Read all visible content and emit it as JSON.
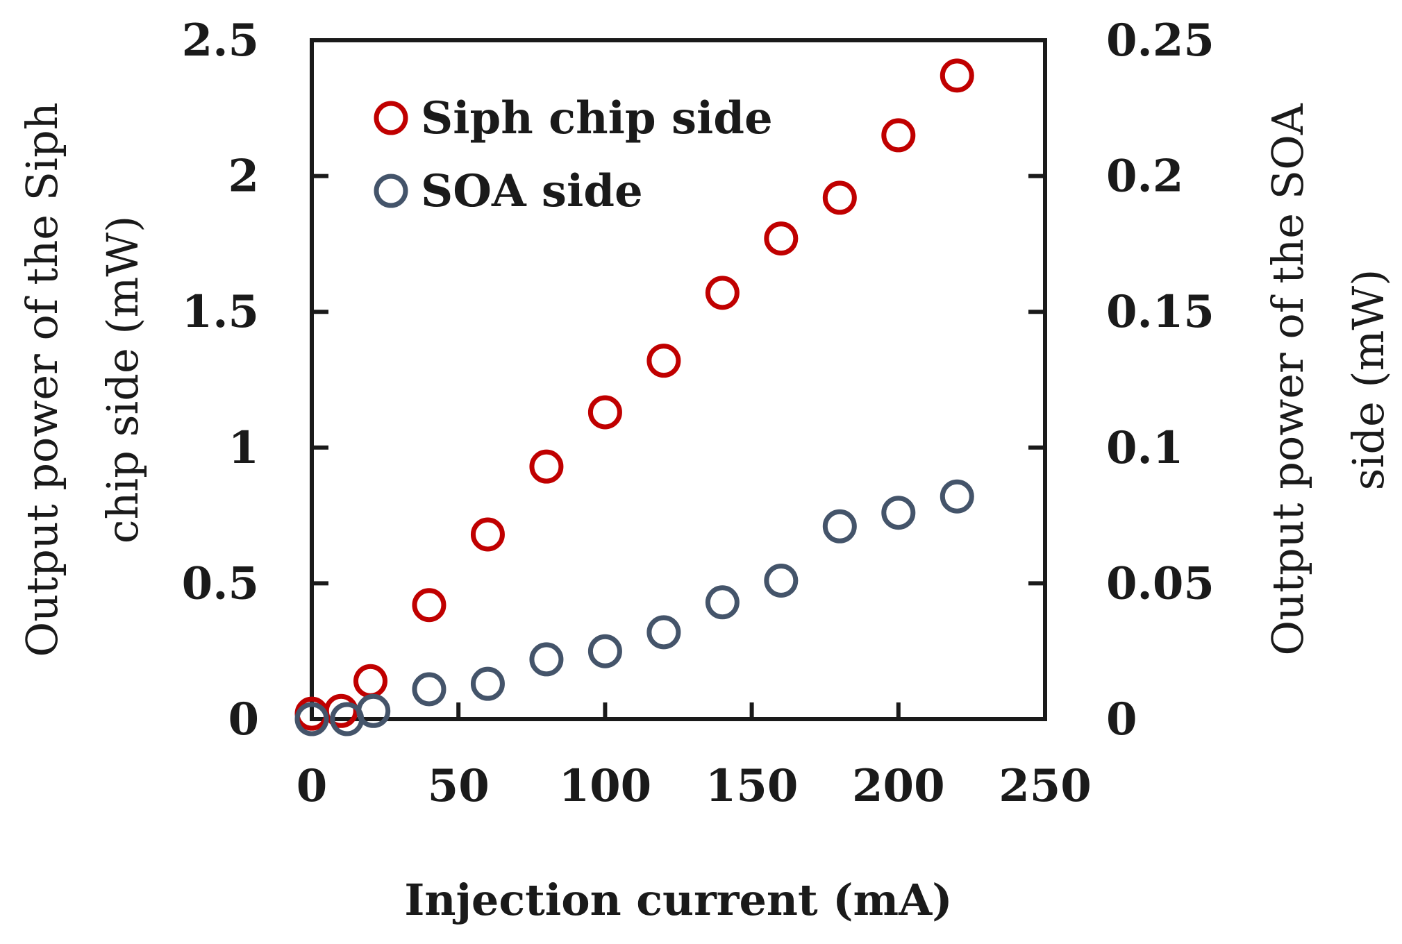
{
  "chart_data": {
    "type": "scatter",
    "title": "",
    "xlabel": "Injection current (mA)",
    "ylabel_left": "Output power of the Siph chip side (mW)",
    "ylabel_left_lines": [
      "Output power of the Siph",
      "chip side (mW)"
    ],
    "ylabel_right": "Output power of the SOA side (mW)",
    "ylabel_right_lines": [
      "Output power of the SOA",
      "side (mW)"
    ],
    "xlim": [
      0,
      250
    ],
    "ylim_left": [
      0,
      2.5
    ],
    "ylim_right": [
      0,
      0.25
    ],
    "x_ticks": [
      0,
      50,
      100,
      150,
      200,
      250
    ],
    "x_tick_labels": [
      "0",
      "50",
      "100",
      "150",
      "200",
      "250"
    ],
    "y_left_ticks": [
      0,
      0.5,
      1,
      1.5,
      2,
      2.5
    ],
    "y_left_tick_labels": [
      "0",
      "0.5",
      "1",
      "1.5",
      "2",
      "2.5"
    ],
    "y_right_ticks": [
      0,
      0.05,
      0.1,
      0.15,
      0.2,
      0.25
    ],
    "y_right_tick_labels": [
      "0",
      "0.05",
      "0.1",
      "0.15",
      "0.2",
      "0.25"
    ],
    "grid": false,
    "legend_position": "top-left",
    "series": [
      {
        "name": "Siph chip side",
        "axis": "left",
        "color": "#c00000",
        "marker": "open-circle",
        "x": [
          0,
          10,
          20,
          40,
          60,
          80,
          100,
          120,
          140,
          160,
          180,
          200,
          220
        ],
        "y": [
          0.02,
          0.03,
          0.14,
          0.42,
          0.68,
          0.93,
          1.13,
          1.32,
          1.57,
          1.77,
          1.92,
          2.15,
          2.37
        ]
      },
      {
        "name": "SOA side",
        "axis": "right",
        "color": "#44546a",
        "marker": "open-circle",
        "x": [
          0,
          12,
          21,
          40,
          60,
          80,
          100,
          120,
          140,
          160,
          180,
          200,
          220
        ],
        "y": [
          0.0,
          0.0,
          0.003,
          0.011,
          0.013,
          0.022,
          0.025,
          0.032,
          0.043,
          0.051,
          0.071,
          0.076,
          0.082
        ]
      }
    ]
  }
}
